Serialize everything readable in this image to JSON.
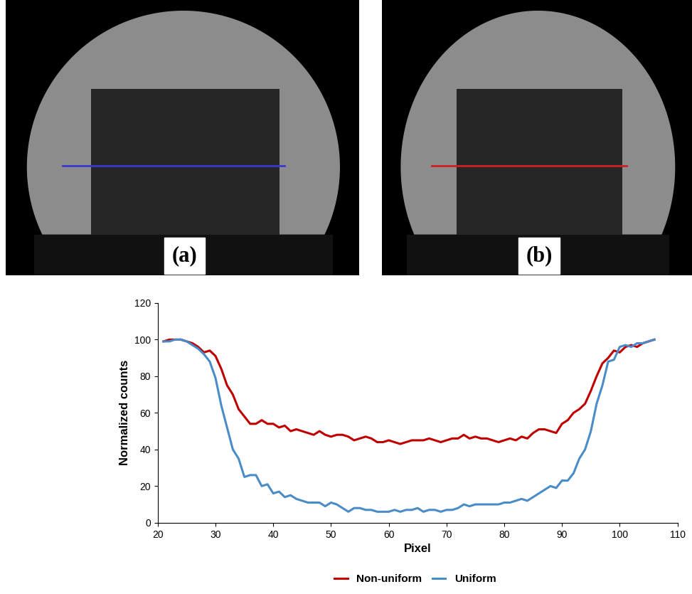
{
  "panels": [
    {
      "label": "(a)",
      "color": "#3a3ad0"
    },
    {
      "label": "(b)",
      "color": "#d02020"
    }
  ],
  "chart_data": {
    "type": "line",
    "x_label": "Pixel",
    "y_label": "Normalized counts",
    "x": [
      21,
      22,
      23,
      24,
      25,
      26,
      27,
      28,
      29,
      30,
      31,
      32,
      33,
      34,
      35,
      36,
      37,
      38,
      39,
      40,
      41,
      42,
      43,
      44,
      45,
      46,
      47,
      48,
      49,
      50,
      51,
      52,
      53,
      54,
      55,
      56,
      57,
      58,
      59,
      60,
      61,
      62,
      63,
      64,
      65,
      66,
      67,
      68,
      69,
      70,
      71,
      72,
      73,
      74,
      75,
      76,
      77,
      78,
      79,
      80,
      81,
      82,
      83,
      84,
      85,
      86,
      87,
      88,
      89,
      90,
      91,
      92,
      93,
      94,
      95,
      96,
      97,
      98,
      99,
      100,
      101,
      102,
      103,
      104,
      105,
      106
    ],
    "series": [
      {
        "name": "Non-uniform",
        "color": "#c00000",
        "values": [
          99,
          100,
          100,
          100,
          99,
          98,
          96,
          93,
          94,
          91,
          84,
          75,
          70,
          62,
          58,
          54,
          54,
          56,
          54,
          54,
          52,
          53,
          50,
          51,
          50,
          49,
          48,
          50,
          48,
          47,
          48,
          48,
          47,
          45,
          46,
          47,
          46,
          44,
          44,
          45,
          44,
          43,
          44,
          45,
          45,
          45,
          46,
          45,
          44,
          45,
          46,
          46,
          48,
          46,
          47,
          46,
          46,
          45,
          44,
          45,
          46,
          45,
          47,
          46,
          49,
          51,
          51,
          50,
          49,
          54,
          56,
          60,
          62,
          65,
          72,
          80,
          87,
          90,
          94,
          93,
          96,
          97,
          96,
          98,
          99,
          100
        ]
      },
      {
        "name": "Uniform",
        "color": "#4a8cc8",
        "values": [
          99,
          99,
          100,
          100,
          99,
          97,
          95,
          92,
          88,
          79,
          64,
          52,
          40,
          35,
          25,
          26,
          26,
          20,
          21,
          16,
          17,
          14,
          15,
          13,
          12,
          11,
          11,
          11,
          9,
          11,
          10,
          8,
          6,
          8,
          8,
          7,
          7,
          6,
          6,
          6,
          7,
          6,
          7,
          7,
          8,
          6,
          7,
          7,
          6,
          7,
          7,
          8,
          10,
          9,
          10,
          10,
          10,
          10,
          10,
          11,
          11,
          12,
          13,
          12,
          14,
          16,
          18,
          20,
          19,
          23,
          23,
          27,
          35,
          40,
          50,
          65,
          75,
          88,
          89,
          96,
          97,
          96,
          98,
          98,
          99,
          100
        ]
      }
    ],
    "xlim": [
      20,
      110
    ],
    "xticks": [
      20,
      30,
      40,
      50,
      60,
      70,
      80,
      90,
      100,
      110
    ],
    "ylim": [
      0,
      120
    ],
    "yticks": [
      0,
      20,
      40,
      60,
      80,
      100,
      120
    ],
    "grid": false,
    "legend": "bottom"
  }
}
